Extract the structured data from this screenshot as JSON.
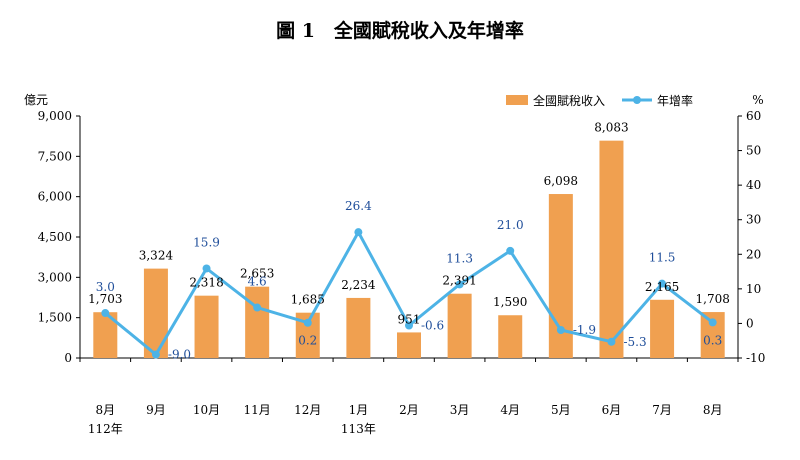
{
  "chart_data": {
    "type": "bar",
    "title": "圖 1　全國賦稅收入及年增率",
    "ylabel_left": "億元",
    "ylabel_right": "%",
    "categories": [
      "8月",
      "9月",
      "10月",
      "11月",
      "12月",
      "1月",
      "2月",
      "3月",
      "4月",
      "5月",
      "6月",
      "7月",
      "8月"
    ],
    "year_labels": [
      {
        "index": 0,
        "label": "112年"
      },
      {
        "index": 5,
        "label": "113年"
      }
    ],
    "y_left": {
      "min": 0,
      "max": 9000,
      "ticks": [
        "0",
        "1,500",
        "3,000",
        "4,500",
        "6,000",
        "7,500",
        "9,000"
      ],
      "tick_values": [
        0,
        1500,
        3000,
        4500,
        6000,
        7500,
        9000
      ]
    },
    "y_right": {
      "min": -10,
      "max": 60,
      "ticks": [
        "-10",
        "0",
        "10",
        "20",
        "30",
        "40",
        "50",
        "60"
      ],
      "tick_values": [
        -10,
        0,
        10,
        20,
        30,
        40,
        50,
        60
      ]
    },
    "series": [
      {
        "name": "全國賦稅收入",
        "kind": "bar",
        "axis": "left",
        "color": "#f0a050",
        "values": [
          1703,
          3324,
          2318,
          2653,
          1685,
          2234,
          951,
          2391,
          1590,
          6098,
          8083,
          2165,
          1708
        ],
        "labels": [
          "1,703",
          "3,324",
          "2,318",
          "2,653",
          "1,685",
          "2,234",
          "951",
          "2,391",
          "1,590",
          "6,098",
          "8,083",
          "2,165",
          "1,708"
        ]
      },
      {
        "name": "年增率",
        "kind": "line",
        "axis": "right",
        "color": "#4db3e6",
        "values": [
          3.0,
          -9.0,
          15.9,
          4.6,
          0.2,
          26.4,
          -0.6,
          11.3,
          21.0,
          -1.9,
          -5.3,
          11.5,
          0.3
        ],
        "labels": [
          "3.0",
          "-9.0",
          "15.9",
          "4.6",
          "0.2",
          "26.4",
          "-0.6",
          "11.3",
          "21.0",
          "-1.9",
          "-5.3",
          "11.5",
          "0.3"
        ]
      }
    ],
    "legend": {
      "position": "top-right",
      "items": [
        "全國賦稅收入",
        "年增率"
      ]
    }
  }
}
